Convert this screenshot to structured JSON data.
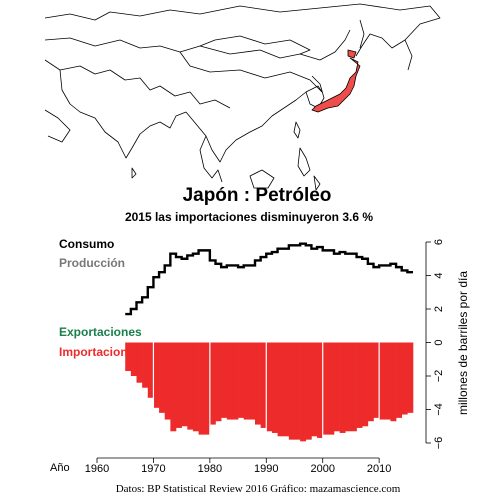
{
  "title": "Japón :  Petróleo",
  "subtitle": "2015 las importaciones disminuyeron 3.6 %",
  "source": "Datos: BP Statistical Review 2016   Gráfico: mazamascience.com",
  "legend": {
    "consumption": "Consumo",
    "production": "Producción",
    "exports": "Exportaciones",
    "imports": "Importaciones"
  },
  "colors": {
    "consumption": "#000000",
    "production": "#777777",
    "exports": "#1a7f4b",
    "imports": "#ee2b2b",
    "map_highlight": "#ef4c4c",
    "year_grid": "#ffffff"
  },
  "map": {
    "region": "east-asia",
    "highlighted_country": "Japan"
  },
  "chart_data": {
    "type": "step-line-and-bar",
    "x_label": "Año",
    "y_label": "millones de barriles por día",
    "xlim": [
      1960,
      2016
    ],
    "x_ticks": [
      1960,
      1970,
      1980,
      1990,
      2000,
      2010
    ],
    "ylim": [
      -6,
      6
    ],
    "y_ticks": [
      -6,
      -4,
      -2,
      0,
      2,
      4,
      6
    ],
    "y_tick_labels": [
      "−6",
      "−4",
      "−2",
      "0",
      "2",
      "4",
      "6"
    ],
    "grid_years": [
      1970,
      1980,
      1990,
      2000,
      2010
    ],
    "years": [
      1965,
      1966,
      1967,
      1968,
      1969,
      1970,
      1971,
      1972,
      1973,
      1974,
      1975,
      1976,
      1977,
      1978,
      1979,
      1980,
      1981,
      1982,
      1983,
      1984,
      1985,
      1986,
      1987,
      1988,
      1989,
      1990,
      1991,
      1992,
      1993,
      1994,
      1995,
      1996,
      1997,
      1998,
      1999,
      2000,
      2001,
      2002,
      2003,
      2004,
      2005,
      2006,
      2007,
      2008,
      2009,
      2010,
      2011,
      2012,
      2013,
      2014,
      2015
    ],
    "series": [
      {
        "name": "Consumo",
        "kind": "step",
        "values": [
          1.7,
          2.0,
          2.4,
          2.7,
          3.3,
          3.9,
          4.2,
          4.6,
          5.3,
          5.1,
          5.0,
          5.2,
          5.3,
          5.5,
          5.5,
          4.9,
          4.7,
          4.5,
          4.6,
          4.6,
          4.5,
          4.6,
          4.6,
          4.9,
          5.1,
          5.3,
          5.4,
          5.6,
          5.6,
          5.8,
          5.8,
          5.9,
          5.8,
          5.6,
          5.7,
          5.5,
          5.5,
          5.3,
          5.4,
          5.3,
          5.3,
          5.1,
          5.0,
          4.7,
          4.5,
          4.6,
          4.6,
          4.7,
          4.5,
          4.3,
          4.2
        ]
      },
      {
        "name": "Producción",
        "kind": "step",
        "values": [
          0.01,
          0.01,
          0.01,
          0.01,
          0.01,
          0.01,
          0.01,
          0.01,
          0.01,
          0.01,
          0.01,
          0.01,
          0.01,
          0.01,
          0.01,
          0.01,
          0.01,
          0.01,
          0.01,
          0.01,
          0.01,
          0.01,
          0.01,
          0.01,
          0.01,
          0.01,
          0.01,
          0.01,
          0.01,
          0.01,
          0.01,
          0.01,
          0.01,
          0.01,
          0.01,
          0.01,
          0.01,
          0.01,
          0.01,
          0.01,
          0.01,
          0.01,
          0.01,
          0.01,
          0.01,
          0.01,
          0.01,
          0.01,
          0.01,
          0.01,
          0.01
        ]
      },
      {
        "name": "Exportaciones",
        "kind": "bar",
        "values": [
          0,
          0,
          0,
          0,
          0,
          0,
          0,
          0,
          0,
          0,
          0,
          0,
          0,
          0,
          0,
          0,
          0,
          0,
          0,
          0,
          0,
          0,
          0,
          0,
          0,
          0,
          0,
          0,
          0,
          0,
          0,
          0,
          0,
          0,
          0,
          0,
          0,
          0,
          0,
          0,
          0,
          0,
          0,
          0,
          0,
          0,
          0,
          0,
          0,
          0,
          0
        ]
      },
      {
        "name": "Importaciones",
        "kind": "bar",
        "values": [
          -1.7,
          -2.0,
          -2.4,
          -2.7,
          -3.3,
          -3.9,
          -4.2,
          -4.6,
          -5.3,
          -5.1,
          -5.0,
          -5.2,
          -5.3,
          -5.5,
          -5.5,
          -4.9,
          -4.7,
          -4.5,
          -4.6,
          -4.6,
          -4.5,
          -4.6,
          -4.6,
          -4.9,
          -5.1,
          -5.3,
          -5.4,
          -5.6,
          -5.6,
          -5.8,
          -5.8,
          -5.9,
          -5.8,
          -5.6,
          -5.7,
          -5.5,
          -5.5,
          -5.3,
          -5.4,
          -5.3,
          -5.3,
          -5.1,
          -5.0,
          -4.7,
          -4.5,
          -4.6,
          -4.6,
          -4.7,
          -4.5,
          -4.3,
          -4.2
        ]
      }
    ]
  }
}
